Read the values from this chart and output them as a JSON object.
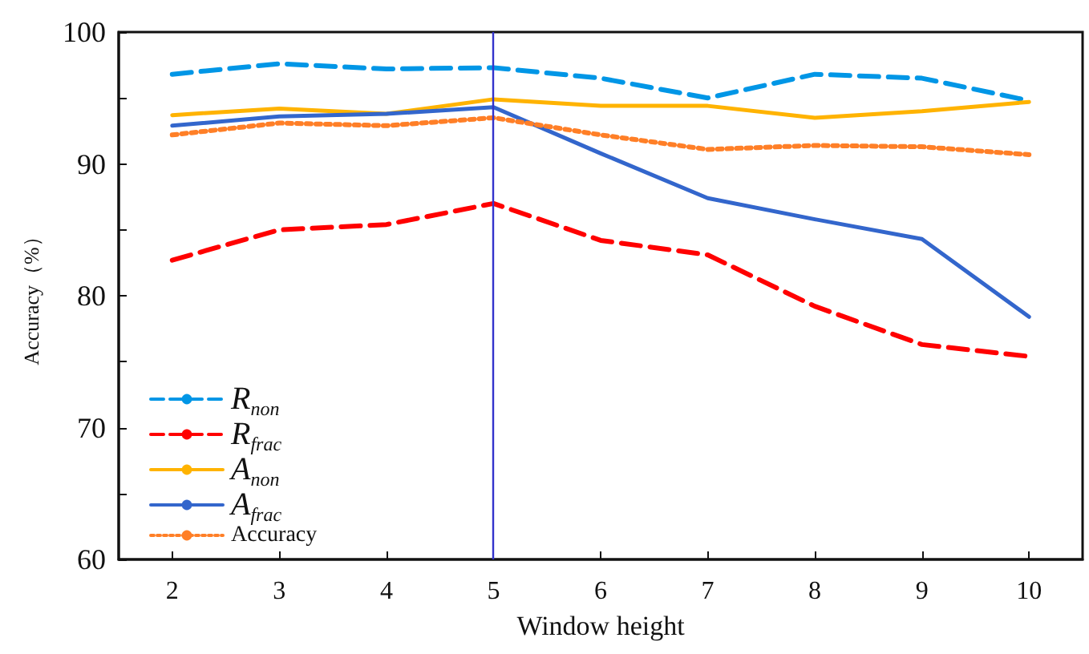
{
  "chart_data": {
    "type": "line",
    "xlabel": "Window height",
    "ylabel": "Accuracy（%）",
    "x": [
      2,
      3,
      4,
      5,
      6,
      7,
      8,
      9,
      10
    ],
    "xlim": [
      1.5,
      10.5
    ],
    "xticks": [
      2,
      3,
      4,
      5,
      6,
      7,
      8,
      9,
      10
    ],
    "ylim": [
      60,
      100
    ],
    "yticks": [
      60,
      {
        "value": 65,
        "label": null
      },
      70,
      {
        "value": 75,
        "label": null
      },
      80,
      {
        "value": 85,
        "label": null
      },
      90,
      {
        "value": 95,
        "label": null
      },
      100
    ],
    "grid": false,
    "legend": "bottom left",
    "marker": "none",
    "ref_lines": [
      {
        "axis": "x",
        "value": 5,
        "color": "#3333cc",
        "line_style": "solid"
      }
    ],
    "series": [
      {
        "name": "R$_{non}$",
        "color": "#0096e6",
        "line_style": "dashed",
        "values": [
          96.8,
          97.6,
          97.2,
          97.3,
          96.5,
          95.0,
          96.8,
          96.5,
          94.8
        ]
      },
      {
        "name": "R$_{frac}$",
        "color": "#ff0000",
        "line_style": "dashed",
        "values": [
          82.7,
          85.0,
          85.4,
          87.0,
          84.2,
          83.1,
          79.2,
          76.3,
          75.4
        ]
      },
      {
        "name": "A$_{non}$",
        "color": "#ffb300",
        "line_style": "solid",
        "values": [
          93.7,
          94.2,
          93.8,
          94.9,
          94.4,
          94.4,
          93.5,
          94.0,
          94.7
        ]
      },
      {
        "name": "A$_{frac}$",
        "color": "#3366cc",
        "line_style": "solid",
        "values": [
          92.9,
          93.6,
          93.8,
          94.3,
          90.8,
          87.4,
          85.8,
          84.3,
          78.4
        ]
      },
      {
        "name": "Accuracy",
        "color": "#ff7f27",
        "line_style": "dotted",
        "values": [
          92.2,
          93.1,
          92.9,
          93.5,
          92.2,
          91.1,
          91.4,
          91.3,
          90.7
        ]
      }
    ]
  }
}
